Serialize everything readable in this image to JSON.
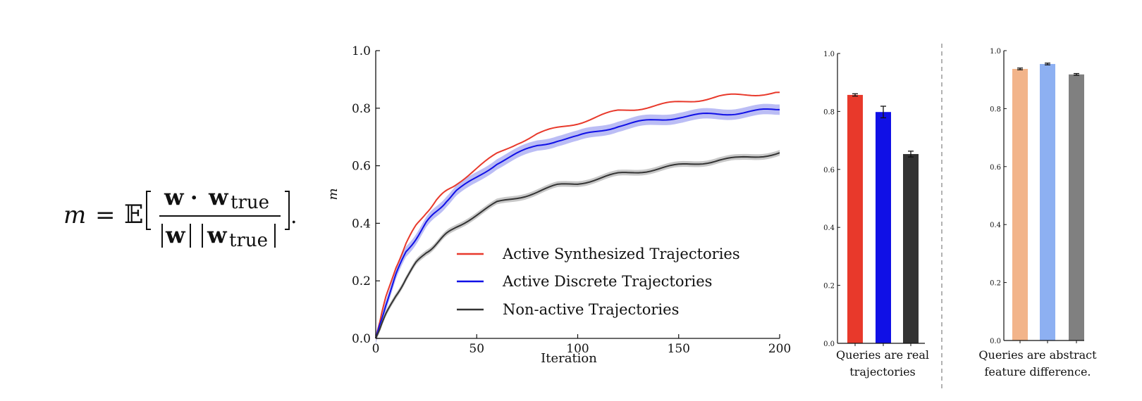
{
  "formula": {
    "lhs": "m",
    "eq": "=",
    "expect": "𝔼",
    "num_w": "w",
    "num_dot": "·",
    "num_w2": "w",
    "num_sub": "true",
    "den_w": "w",
    "den_w2": "w",
    "den_sub": "true",
    "trail": "."
  },
  "colors": {
    "synth": "#e8392b",
    "discrete": "#1010e6",
    "nonactive": "#333333",
    "synth_band": "#f4b9b2",
    "discrete_band": "#bbbdf5",
    "nonactive_band": "#c8c8c8",
    "abstract_synth": "#f2b48a",
    "abstract_discrete": "#8db0f2",
    "abstract_nonactive": "#808080"
  },
  "chart_data": [
    {
      "type": "line",
      "xlabel": "Iteration",
      "ylabel": "m",
      "xlim": [
        0,
        200
      ],
      "ylim": [
        0,
        1.0
      ],
      "x_ticks": [
        "0",
        "50",
        "100",
        "150",
        "200"
      ],
      "y_ticks": [
        "0.0",
        "0.2",
        "0.4",
        "0.6",
        "0.8",
        "1.0"
      ],
      "legend_position": "bottom-center",
      "x": [
        0,
        5,
        10,
        15,
        20,
        25,
        30,
        35,
        40,
        50,
        60,
        70,
        80,
        90,
        100,
        110,
        120,
        130,
        140,
        150,
        160,
        170,
        180,
        190,
        200
      ],
      "series": [
        {
          "name": "Active Synthesized Trajectories",
          "color_key": "synth",
          "values": [
            0.0,
            0.14,
            0.25,
            0.33,
            0.39,
            0.44,
            0.48,
            0.51,
            0.54,
            0.59,
            0.64,
            0.68,
            0.71,
            0.73,
            0.75,
            0.77,
            0.79,
            0.8,
            0.81,
            0.82,
            0.83,
            0.84,
            0.845,
            0.85,
            0.855
          ]
        },
        {
          "name": "Active Discrete Trajectories",
          "color_key": "discrete",
          "values": [
            0.0,
            0.12,
            0.22,
            0.3,
            0.35,
            0.4,
            0.44,
            0.48,
            0.51,
            0.56,
            0.61,
            0.64,
            0.67,
            0.69,
            0.7,
            0.72,
            0.74,
            0.75,
            0.76,
            0.77,
            0.775,
            0.78,
            0.785,
            0.79,
            0.795
          ],
          "band": 0.018
        },
        {
          "name": "Non-active Trajectories",
          "color_key": "nonactive",
          "values": [
            0.0,
            0.08,
            0.15,
            0.21,
            0.26,
            0.3,
            0.33,
            0.36,
            0.39,
            0.43,
            0.47,
            0.49,
            0.51,
            0.53,
            0.54,
            0.555,
            0.57,
            0.58,
            0.59,
            0.6,
            0.61,
            0.62,
            0.625,
            0.635,
            0.645
          ],
          "band": 0.01
        }
      ]
    },
    {
      "type": "bar",
      "caption": [
        "Queries are real",
        "trajectories"
      ],
      "ylim": [
        0,
        1.0
      ],
      "y_ticks": [
        "0.0",
        "0.2",
        "0.4",
        "0.6",
        "0.8",
        "1.0"
      ],
      "values": [
        0.857,
        0.798,
        0.653
      ],
      "errors": [
        0.004,
        0.02,
        0.01
      ],
      "color_keys": [
        "synth",
        "discrete",
        "nonactive"
      ]
    },
    {
      "type": "bar",
      "caption": [
        "Queries are abstract",
        "feature difference."
      ],
      "ylim": [
        0,
        1.0
      ],
      "y_ticks": [
        "0.0",
        "0.2",
        "0.4",
        "0.6",
        "0.8",
        "1.0"
      ],
      "values": [
        0.937,
        0.954,
        0.918
      ],
      "errors": [
        0.003,
        0.003,
        0.003
      ],
      "color_keys": [
        "abstract_synth",
        "abstract_discrete",
        "abstract_nonactive"
      ]
    }
  ]
}
